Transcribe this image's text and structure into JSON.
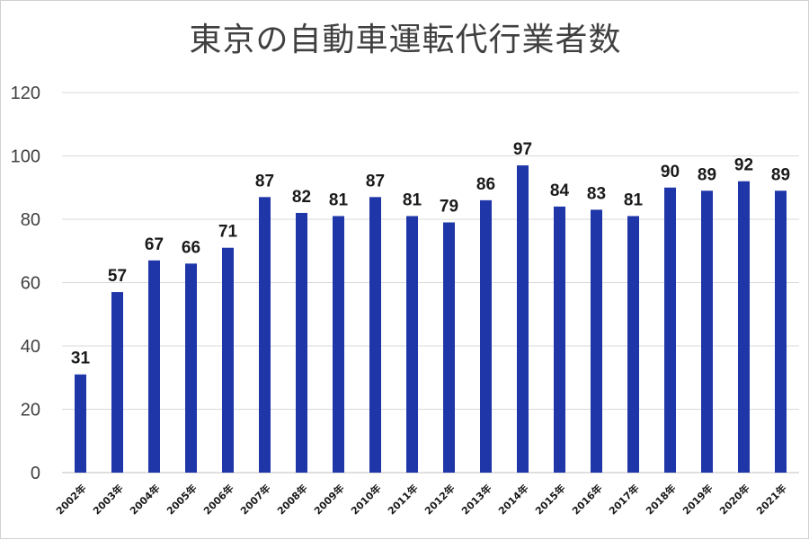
{
  "chart_data": {
    "type": "bar",
    "title": "東京の自動車運転代行業者数",
    "xlabel": "",
    "ylabel": "",
    "ylim": [
      0,
      120
    ],
    "yticks": [
      0,
      20,
      40,
      60,
      80,
      100,
      120
    ],
    "grid": true,
    "bar_color": "#1f36a8",
    "categories": [
      "2002年",
      "2003年",
      "2004年",
      "2005年",
      "2006年",
      "2007年",
      "2008年",
      "2009年",
      "2010年",
      "2011年",
      "2012年",
      "2013年",
      "2014年",
      "2015年",
      "2016年",
      "2017年",
      "2018年",
      "2019年",
      "2020年",
      "2021年"
    ],
    "values": [
      31,
      57,
      67,
      66,
      71,
      87,
      82,
      81,
      87,
      81,
      79,
      86,
      97,
      84,
      83,
      81,
      90,
      89,
      92,
      89
    ]
  }
}
